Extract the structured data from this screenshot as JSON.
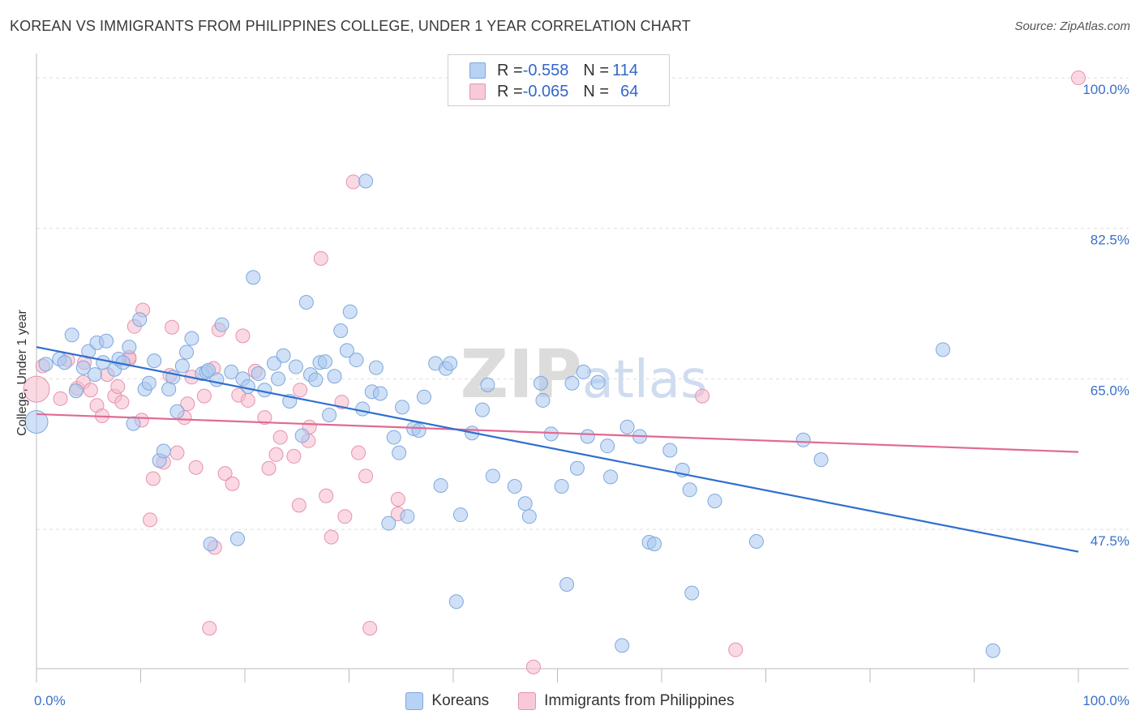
{
  "title": "KOREAN VS IMMIGRANTS FROM PHILIPPINES COLLEGE, UNDER 1 YEAR CORRELATION CHART",
  "source": "Source: ZipAtlas.com",
  "watermark": "ZIPatlas",
  "colors": {
    "korean_fill": "#a9c8f0",
    "korean_stroke": "#7fa8dc",
    "korean_line": "#2f6fcf",
    "phil_fill": "#f5b9cc",
    "phil_stroke": "#e792ad",
    "phil_line": "#e06a93",
    "tick_label": "#3a70c8",
    "grid": "#dddddd"
  },
  "legend": {
    "rows": [
      {
        "r_label": "R = ",
        "r_value": "-0.558",
        "n_label": "N = ",
        "n_value": "114"
      },
      {
        "r_label": "R = ",
        "r_value": "-0.065",
        "n_label": "N = ",
        "n_value": "64"
      }
    ]
  },
  "chart_data": {
    "type": "scatter",
    "title": "KOREAN VS IMMIGRANTS FROM PHILIPPINES COLLEGE, UNDER 1 YEAR CORRELATION CHART",
    "xlabel": "",
    "ylabel": "College, Under 1 year",
    "x_tick_labels": [
      "0.0%",
      "100.0%"
    ],
    "y_tick_labels": [
      "100.0%",
      "82.5%",
      "65.0%",
      "47.5%"
    ],
    "y_ticks": [
      100.0,
      82.5,
      65.0,
      47.5
    ],
    "xlim": [
      0,
      100
    ],
    "ylim": [
      31.3,
      101.7
    ],
    "grid": true,
    "legend_position": "top-center",
    "series": [
      {
        "name": "Koreans",
        "trend": {
          "x": [
            0,
            100
          ],
          "y": [
            68.7,
            44.9
          ]
        },
        "points": [
          {
            "x": 0.0,
            "y": 60.0,
            "s": 14
          },
          {
            "x": 0.9,
            "y": 66.7
          },
          {
            "x": 2.2,
            "y": 67.3
          },
          {
            "x": 2.7,
            "y": 66.9
          },
          {
            "x": 3.4,
            "y": 70.1
          },
          {
            "x": 3.8,
            "y": 63.6
          },
          {
            "x": 4.5,
            "y": 66.3
          },
          {
            "x": 5.0,
            "y": 68.2
          },
          {
            "x": 5.6,
            "y": 65.5
          },
          {
            "x": 5.8,
            "y": 69.2
          },
          {
            "x": 6.4,
            "y": 66.9
          },
          {
            "x": 6.7,
            "y": 69.4
          },
          {
            "x": 7.5,
            "y": 66.1
          },
          {
            "x": 7.9,
            "y": 67.3
          },
          {
            "x": 8.3,
            "y": 66.9
          },
          {
            "x": 8.9,
            "y": 68.7
          },
          {
            "x": 9.3,
            "y": 59.8
          },
          {
            "x": 9.9,
            "y": 71.9
          },
          {
            "x": 10.4,
            "y": 63.8
          },
          {
            "x": 10.8,
            "y": 64.5
          },
          {
            "x": 11.3,
            "y": 67.1
          },
          {
            "x": 11.8,
            "y": 55.5
          },
          {
            "x": 12.2,
            "y": 56.6
          },
          {
            "x": 12.7,
            "y": 63.8
          },
          {
            "x": 13.1,
            "y": 65.2
          },
          {
            "x": 13.5,
            "y": 61.2
          },
          {
            "x": 14.0,
            "y": 66.5
          },
          {
            "x": 14.4,
            "y": 68.1
          },
          {
            "x": 14.9,
            "y": 69.7
          },
          {
            "x": 15.9,
            "y": 65.6
          },
          {
            "x": 16.3,
            "y": 65.8
          },
          {
            "x": 16.7,
            "y": 45.8
          },
          {
            "x": 17.3,
            "y": 64.9
          },
          {
            "x": 17.8,
            "y": 71.3
          },
          {
            "x": 18.7,
            "y": 65.8
          },
          {
            "x": 19.3,
            "y": 46.4
          },
          {
            "x": 19.8,
            "y": 65.0
          },
          {
            "x": 20.3,
            "y": 64.1
          },
          {
            "x": 20.8,
            "y": 76.8
          },
          {
            "x": 21.3,
            "y": 65.6
          },
          {
            "x": 21.9,
            "y": 63.7
          },
          {
            "x": 22.8,
            "y": 66.8
          },
          {
            "x": 23.2,
            "y": 65.0
          },
          {
            "x": 23.7,
            "y": 67.7
          },
          {
            "x": 24.3,
            "y": 62.4
          },
          {
            "x": 24.9,
            "y": 66.4
          },
          {
            "x": 25.5,
            "y": 58.4
          },
          {
            "x": 25.9,
            "y": 73.9
          },
          {
            "x": 26.3,
            "y": 65.5
          },
          {
            "x": 26.8,
            "y": 64.9
          },
          {
            "x": 27.2,
            "y": 66.9
          },
          {
            "x": 27.7,
            "y": 67.0
          },
          {
            "x": 28.1,
            "y": 60.8
          },
          {
            "x": 28.6,
            "y": 65.3
          },
          {
            "x": 29.2,
            "y": 70.6
          },
          {
            "x": 29.8,
            "y": 68.3
          },
          {
            "x": 30.1,
            "y": 72.8
          },
          {
            "x": 30.7,
            "y": 67.2
          },
          {
            "x": 31.3,
            "y": 61.5
          },
          {
            "x": 31.6,
            "y": 88.0
          },
          {
            "x": 32.2,
            "y": 63.5
          },
          {
            "x": 32.6,
            "y": 66.3
          },
          {
            "x": 33.0,
            "y": 63.3
          },
          {
            "x": 33.8,
            "y": 48.2
          },
          {
            "x": 34.3,
            "y": 58.2
          },
          {
            "x": 34.8,
            "y": 56.4
          },
          {
            "x": 35.1,
            "y": 61.7
          },
          {
            "x": 35.6,
            "y": 49.0
          },
          {
            "x": 36.2,
            "y": 59.2
          },
          {
            "x": 36.7,
            "y": 59.0
          },
          {
            "x": 37.2,
            "y": 62.9
          },
          {
            "x": 38.3,
            "y": 66.8
          },
          {
            "x": 38.8,
            "y": 52.6
          },
          {
            "x": 39.3,
            "y": 66.2
          },
          {
            "x": 39.7,
            "y": 66.8
          },
          {
            "x": 40.7,
            "y": 49.2
          },
          {
            "x": 40.3,
            "y": 39.1
          },
          {
            "x": 41.8,
            "y": 58.7
          },
          {
            "x": 42.8,
            "y": 61.4
          },
          {
            "x": 43.3,
            "y": 64.3
          },
          {
            "x": 43.8,
            "y": 53.7
          },
          {
            "x": 45.9,
            "y": 52.5
          },
          {
            "x": 46.9,
            "y": 50.5
          },
          {
            "x": 47.3,
            "y": 49.0
          },
          {
            "x": 48.4,
            "y": 64.5
          },
          {
            "x": 48.6,
            "y": 62.5
          },
          {
            "x": 49.4,
            "y": 58.6
          },
          {
            "x": 50.4,
            "y": 52.5
          },
          {
            "x": 50.9,
            "y": 41.1
          },
          {
            "x": 51.4,
            "y": 64.5
          },
          {
            "x": 51.9,
            "y": 54.6
          },
          {
            "x": 52.5,
            "y": 65.8
          },
          {
            "x": 52.9,
            "y": 58.3
          },
          {
            "x": 53.9,
            "y": 64.6
          },
          {
            "x": 54.8,
            "y": 57.2
          },
          {
            "x": 55.1,
            "y": 53.6
          },
          {
            "x": 56.2,
            "y": 34.0
          },
          {
            "x": 56.7,
            "y": 59.4
          },
          {
            "x": 57.9,
            "y": 58.3
          },
          {
            "x": 58.8,
            "y": 46.0
          },
          {
            "x": 59.3,
            "y": 45.8
          },
          {
            "x": 60.8,
            "y": 56.7
          },
          {
            "x": 62.0,
            "y": 54.4
          },
          {
            "x": 62.7,
            "y": 52.1
          },
          {
            "x": 62.9,
            "y": 40.1
          },
          {
            "x": 65.1,
            "y": 50.8
          },
          {
            "x": 69.1,
            "y": 46.1
          },
          {
            "x": 73.6,
            "y": 57.9
          },
          {
            "x": 75.3,
            "y": 55.6
          },
          {
            "x": 87.0,
            "y": 68.4
          },
          {
            "x": 91.8,
            "y": 33.4
          },
          {
            "x": 16.5,
            "y": 66.0
          }
        ]
      },
      {
        "name": "Immigrants from Philippines",
        "trend": {
          "x": [
            0,
            100
          ],
          "y": [
            60.9,
            56.5
          ]
        },
        "points": [
          {
            "x": 0.0,
            "y": 63.8,
            "s": 16
          },
          {
            "x": 0.6,
            "y": 66.5
          },
          {
            "x": 2.3,
            "y": 62.7
          },
          {
            "x": 3.0,
            "y": 67.2
          },
          {
            "x": 3.9,
            "y": 63.9
          },
          {
            "x": 4.5,
            "y": 64.6
          },
          {
            "x": 5.2,
            "y": 63.7
          },
          {
            "x": 5.8,
            "y": 61.9
          },
          {
            "x": 6.3,
            "y": 60.7
          },
          {
            "x": 6.8,
            "y": 65.5
          },
          {
            "x": 7.5,
            "y": 63.0
          },
          {
            "x": 7.8,
            "y": 64.1
          },
          {
            "x": 8.2,
            "y": 62.3
          },
          {
            "x": 8.9,
            "y": 67.3
          },
          {
            "x": 9.4,
            "y": 71.1
          },
          {
            "x": 10.1,
            "y": 60.2
          },
          {
            "x": 10.2,
            "y": 73.0
          },
          {
            "x": 10.9,
            "y": 48.6
          },
          {
            "x": 11.2,
            "y": 53.4
          },
          {
            "x": 12.2,
            "y": 55.3
          },
          {
            "x": 12.8,
            "y": 65.4
          },
          {
            "x": 13.0,
            "y": 71.0
          },
          {
            "x": 13.5,
            "y": 56.4
          },
          {
            "x": 14.2,
            "y": 60.5
          },
          {
            "x": 14.5,
            "y": 62.1
          },
          {
            "x": 14.9,
            "y": 65.2
          },
          {
            "x": 15.3,
            "y": 54.7
          },
          {
            "x": 16.1,
            "y": 63.0
          },
          {
            "x": 16.6,
            "y": 36.0
          },
          {
            "x": 17.1,
            "y": 45.4
          },
          {
            "x": 17.5,
            "y": 70.7
          },
          {
            "x": 18.1,
            "y": 54.0
          },
          {
            "x": 18.8,
            "y": 52.8
          },
          {
            "x": 19.4,
            "y": 63.1
          },
          {
            "x": 19.8,
            "y": 70.0
          },
          {
            "x": 20.3,
            "y": 62.5
          },
          {
            "x": 21.0,
            "y": 65.9
          },
          {
            "x": 21.9,
            "y": 60.5
          },
          {
            "x": 22.3,
            "y": 54.6
          },
          {
            "x": 23.0,
            "y": 56.2
          },
          {
            "x": 23.4,
            "y": 58.2
          },
          {
            "x": 24.7,
            "y": 56.0
          },
          {
            "x": 25.2,
            "y": 50.3
          },
          {
            "x": 26.1,
            "y": 57.8
          },
          {
            "x": 26.2,
            "y": 59.4
          },
          {
            "x": 27.3,
            "y": 79.0
          },
          {
            "x": 27.8,
            "y": 51.4
          },
          {
            "x": 28.3,
            "y": 46.6
          },
          {
            "x": 29.6,
            "y": 49.0
          },
          {
            "x": 30.4,
            "y": 87.9
          },
          {
            "x": 30.9,
            "y": 56.4
          },
          {
            "x": 31.6,
            "y": 53.7
          },
          {
            "x": 32.0,
            "y": 36.0
          },
          {
            "x": 34.7,
            "y": 51.0
          },
          {
            "x": 34.7,
            "y": 49.3
          },
          {
            "x": 47.7,
            "y": 31.5
          },
          {
            "x": 63.9,
            "y": 63.0
          },
          {
            "x": 67.1,
            "y": 33.5
          },
          {
            "x": 100.0,
            "y": 100.0
          },
          {
            "x": 4.6,
            "y": 66.9
          },
          {
            "x": 8.9,
            "y": 67.5
          },
          {
            "x": 17.0,
            "y": 66.2
          },
          {
            "x": 25.3,
            "y": 63.7
          },
          {
            "x": 29.3,
            "y": 62.3
          }
        ]
      }
    ]
  },
  "bottom_legend": [
    {
      "label": "Koreans"
    },
    {
      "label": "Immigrants from Philippines"
    }
  ]
}
